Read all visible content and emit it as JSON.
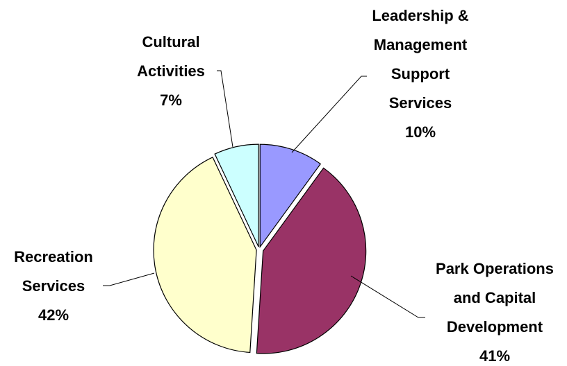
{
  "chart_data": {
    "type": "pie",
    "title": "",
    "slices": [
      {
        "label": [
          "Leadership &",
          "Management",
          "Support",
          "Services"
        ],
        "percent_label": "10%",
        "value": 10,
        "color": "#9999ff"
      },
      {
        "label": [
          "Park Operations",
          "and Capital",
          "Development"
        ],
        "percent_label": "41%",
        "value": 41,
        "color": "#993366"
      },
      {
        "label": [
          "Recreation",
          "Services"
        ],
        "percent_label": "42%",
        "value": 42,
        "color": "#ffffcc"
      },
      {
        "label": [
          "Cultural",
          "Activities"
        ],
        "percent_label": "7%",
        "value": 7,
        "color": "#ccffff"
      }
    ],
    "legend": "none"
  }
}
